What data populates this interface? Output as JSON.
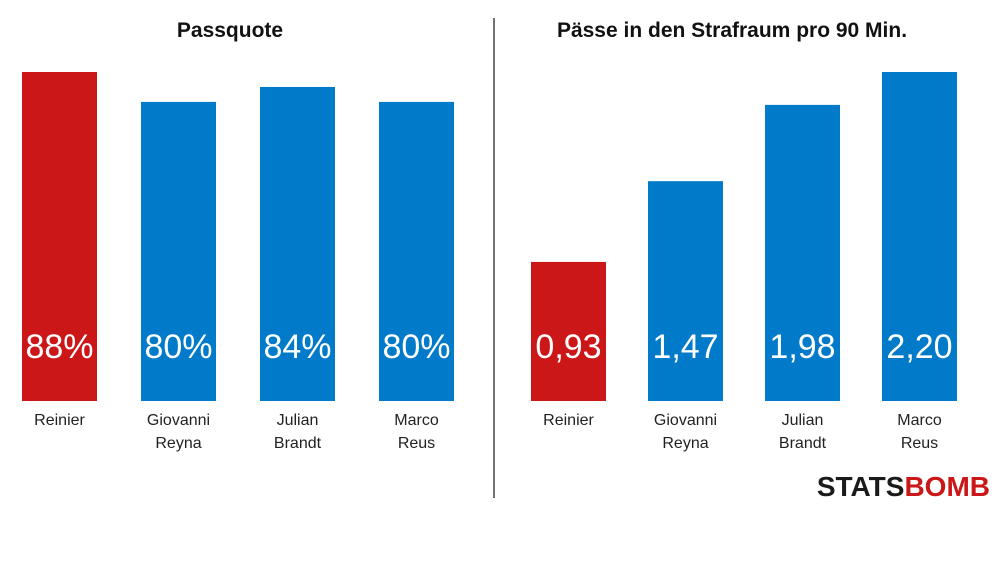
{
  "colors": {
    "highlight": "#cc1719",
    "default": "#007ac9",
    "divider": "#444444",
    "logo_dark": "#1a1a1a"
  },
  "logo": {
    "part1": "STATS",
    "part2": "BOMB"
  },
  "chart_data": [
    {
      "type": "bar",
      "title": "Passquote",
      "categories": [
        [
          "Reinier"
        ],
        [
          "Giovanni",
          "Reyna"
        ],
        [
          "Julian",
          "Brandt"
        ],
        [
          "Marco",
          "Reus"
        ]
      ],
      "values": [
        88,
        80,
        84,
        80
      ],
      "value_labels": [
        "88%",
        "80%",
        "84%",
        "80%"
      ],
      "highlight_index": 0,
      "ylim": [
        0,
        88
      ]
    },
    {
      "type": "bar",
      "title": "Pässe in den Strafraum pro 90 Min.",
      "categories": [
        [
          "Reinier"
        ],
        [
          "Giovanni",
          "Reyna"
        ],
        [
          "Julian",
          "Brandt"
        ],
        [
          "Marco",
          "Reus"
        ]
      ],
      "values": [
        0.93,
        1.47,
        1.98,
        2.2
      ],
      "value_labels": [
        "0,93",
        "1,47",
        "1,98",
        "2,20"
      ],
      "highlight_index": 0,
      "ylim": [
        0,
        2.2
      ]
    }
  ]
}
